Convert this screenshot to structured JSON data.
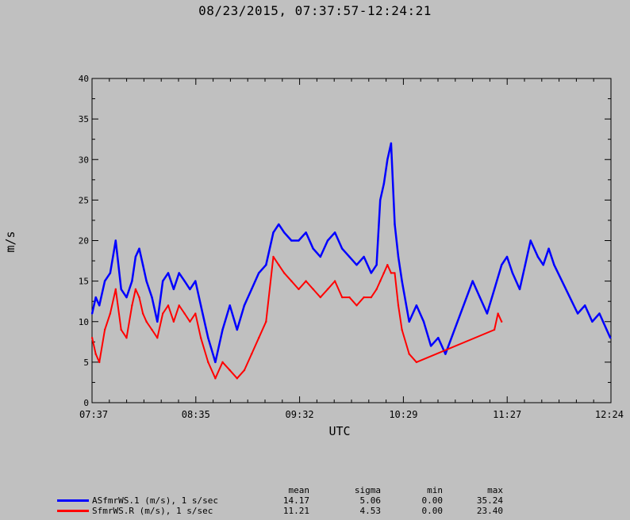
{
  "header": {
    "title": "08/23/2015, 07:37:57-12:24:21"
  },
  "colors": {
    "background": "#c0c0c0",
    "plot_bg": "#c0c0c0",
    "series1": "#0000ff",
    "series2": "#ff0000"
  },
  "chart_data": {
    "type": "line",
    "title": "08/23/2015, 07:37:57-12:24:21",
    "xlabel": "UTC",
    "ylabel": "m/s",
    "ylim": [
      0,
      40
    ],
    "yticks": [
      0,
      5,
      10,
      15,
      20,
      25,
      30,
      35,
      40
    ],
    "xlim": [
      "07:37:57",
      "12:24:21"
    ],
    "xtick_labels": [
      "07:37",
      "08:35",
      "09:32",
      "10:29",
      "11:27",
      "12:24"
    ],
    "grid": false,
    "legend_position": "bottom-left",
    "series": [
      {
        "name": "ASfmrWS.1 (m/s), 1 s/sec",
        "color": "#0000ff",
        "stats": {
          "mean": "14.17",
          "sigma": "5.06",
          "min": "0.00",
          "max": "35.24"
        },
        "x": [
          "07:38",
          "07:40",
          "07:42",
          "07:45",
          "07:48",
          "07:51",
          "07:54",
          "07:57",
          "08:00",
          "08:02",
          "08:04",
          "08:06",
          "08:08",
          "08:11",
          "08:14",
          "08:17",
          "08:20",
          "08:23",
          "08:26",
          "08:29",
          "08:32",
          "08:35",
          "08:38",
          "08:42",
          "08:46",
          "08:50",
          "08:54",
          "08:58",
          "09:02",
          "09:06",
          "09:10",
          "09:14",
          "09:18",
          "09:21",
          "09:24",
          "09:28",
          "09:32",
          "09:36",
          "09:40",
          "09:44",
          "09:48",
          "09:52",
          "09:56",
          "10:00",
          "10:04",
          "10:08",
          "10:12",
          "10:15",
          "10:17",
          "10:19",
          "10:21",
          "10:23",
          "10:25",
          "10:27",
          "10:29",
          "10:33",
          "10:37",
          "10:41",
          "10:45",
          "10:49",
          "10:53",
          "11:08",
          "11:12",
          "11:16",
          "11:20",
          "11:24",
          "11:27",
          "11:30",
          "11:34",
          "11:37",
          "11:40",
          "11:44",
          "11:47",
          "11:50",
          "11:53",
          "12:06",
          "12:10",
          "12:14",
          "12:18",
          "12:22",
          "12:24"
        ],
        "y": [
          11,
          13,
          12,
          15,
          16,
          20,
          14,
          13,
          15,
          18,
          19,
          17,
          15,
          13,
          10,
          15,
          16,
          14,
          16,
          15,
          14,
          15,
          12,
          8,
          5,
          9,
          12,
          9,
          12,
          14,
          16,
          17,
          21,
          22,
          21,
          20,
          20,
          21,
          19,
          18,
          20,
          21,
          19,
          18,
          17,
          18,
          16,
          17,
          25,
          27,
          30,
          32,
          22,
          18,
          15,
          10,
          12,
          10,
          7,
          8,
          6,
          15,
          13,
          11,
          14,
          17,
          18,
          16,
          14,
          17,
          20,
          18,
          17,
          19,
          17,
          11,
          12,
          10,
          11,
          9,
          8
        ]
      },
      {
        "name": "SfmrWS.R (m/s), 1 s/sec",
        "color": "#ff0000",
        "stats": {
          "mean": "11.21",
          "sigma": "4.53",
          "min": "0.00",
          "max": "23.40"
        },
        "x": [
          "07:38",
          "07:40",
          "07:42",
          "07:45",
          "07:48",
          "07:51",
          "07:54",
          "07:57",
          "08:00",
          "08:02",
          "08:04",
          "08:06",
          "08:08",
          "08:11",
          "08:14",
          "08:17",
          "08:20",
          "08:23",
          "08:26",
          "08:29",
          "08:32",
          "08:35",
          "08:38",
          "08:42",
          "08:46",
          "08:50",
          "08:54",
          "08:58",
          "09:02",
          "09:06",
          "09:10",
          "09:14",
          "09:18",
          "09:21",
          "09:24",
          "09:28",
          "09:32",
          "09:36",
          "09:40",
          "09:44",
          "09:48",
          "09:52",
          "09:56",
          "10:00",
          "10:04",
          "10:08",
          "10:12",
          "10:15",
          "10:17",
          "10:19",
          "10:21",
          "10:23",
          "10:25",
          "10:27",
          "10:29",
          "10:33",
          "10:37",
          "11:20",
          "11:22",
          "11:24"
        ],
        "y": [
          8,
          6,
          5,
          9,
          11,
          14,
          9,
          8,
          12,
          14,
          13,
          11,
          10,
          9,
          8,
          11,
          12,
          10,
          12,
          11,
          10,
          11,
          8,
          5,
          3,
          5,
          4,
          3,
          4,
          6,
          8,
          10,
          18,
          17,
          16,
          15,
          14,
          15,
          14,
          13,
          14,
          15,
          13,
          13,
          12,
          13,
          13,
          14,
          15,
          16,
          17,
          16,
          16,
          12,
          9,
          6,
          5,
          9,
          11,
          10
        ]
      }
    ]
  }
}
